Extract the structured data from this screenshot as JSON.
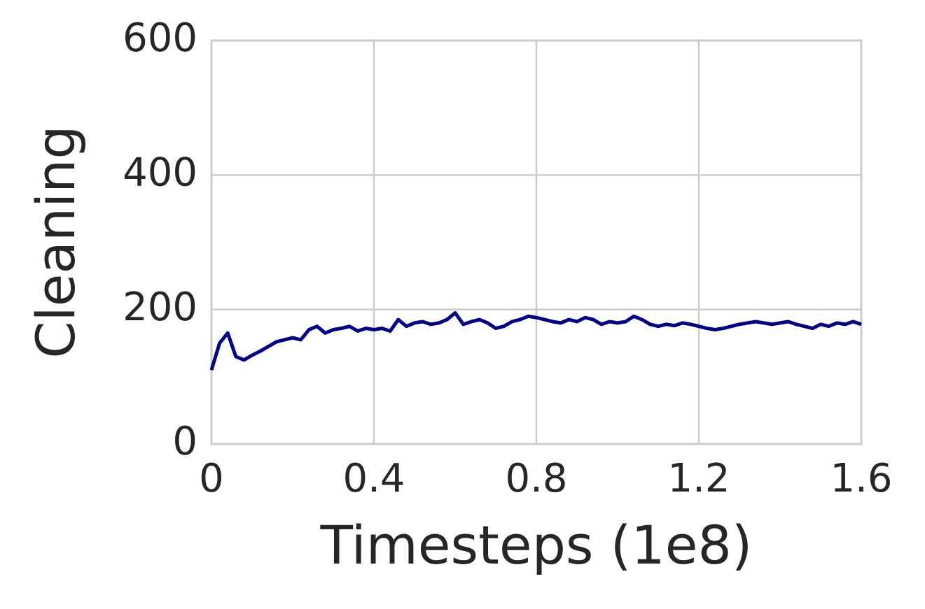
{
  "chart_data": {
    "type": "line",
    "xlabel": "Timesteps (1e8)",
    "ylabel": "Cleaning",
    "xlim": [
      0,
      1.6
    ],
    "ylim": [
      0,
      600
    ],
    "xticks": [
      0,
      0.4,
      0.8,
      1.2,
      1.6
    ],
    "yticks": [
      0,
      200,
      400,
      600
    ],
    "grid": true,
    "x": [
      0,
      0.02,
      0.04,
      0.06,
      0.08,
      0.1,
      0.12,
      0.14,
      0.16,
      0.18,
      0.2,
      0.22,
      0.24,
      0.26,
      0.28,
      0.3,
      0.32,
      0.34,
      0.36,
      0.38,
      0.4,
      0.42,
      0.44,
      0.46,
      0.48,
      0.5,
      0.52,
      0.54,
      0.56,
      0.58,
      0.6,
      0.62,
      0.64,
      0.66,
      0.68,
      0.7,
      0.72,
      0.74,
      0.76,
      0.78,
      0.8,
      0.82,
      0.84,
      0.86,
      0.88,
      0.9,
      0.92,
      0.94,
      0.96,
      0.98,
      1,
      1.02,
      1.04,
      1.06,
      1.08,
      1.1,
      1.12,
      1.14,
      1.16,
      1.18,
      1.2,
      1.22,
      1.24,
      1.26,
      1.28,
      1.3,
      1.32,
      1.34,
      1.36,
      1.38,
      1.4,
      1.42,
      1.44,
      1.46,
      1.48,
      1.5,
      1.52,
      1.54,
      1.56,
      1.58,
      1.6
    ],
    "series": [
      {
        "color": "#00008b",
        "values": [
          110,
          150,
          165,
          130,
          125,
          132,
          138,
          145,
          152,
          155,
          158,
          155,
          170,
          175,
          165,
          170,
          172,
          175,
          168,
          172,
          170,
          172,
          168,
          185,
          175,
          180,
          182,
          178,
          180,
          185,
          195,
          178,
          182,
          185,
          180,
          172,
          175,
          182,
          185,
          190,
          188,
          185,
          182,
          180,
          185,
          182,
          188,
          185,
          178,
          182,
          180,
          182,
          190,
          185,
          178,
          175,
          178,
          176,
          180,
          178,
          175,
          172,
          170,
          172,
          175,
          178,
          180,
          182,
          180,
          178,
          180,
          182,
          178,
          175,
          172,
          178,
          175,
          180,
          178,
          182,
          178
        ]
      }
    ]
  }
}
